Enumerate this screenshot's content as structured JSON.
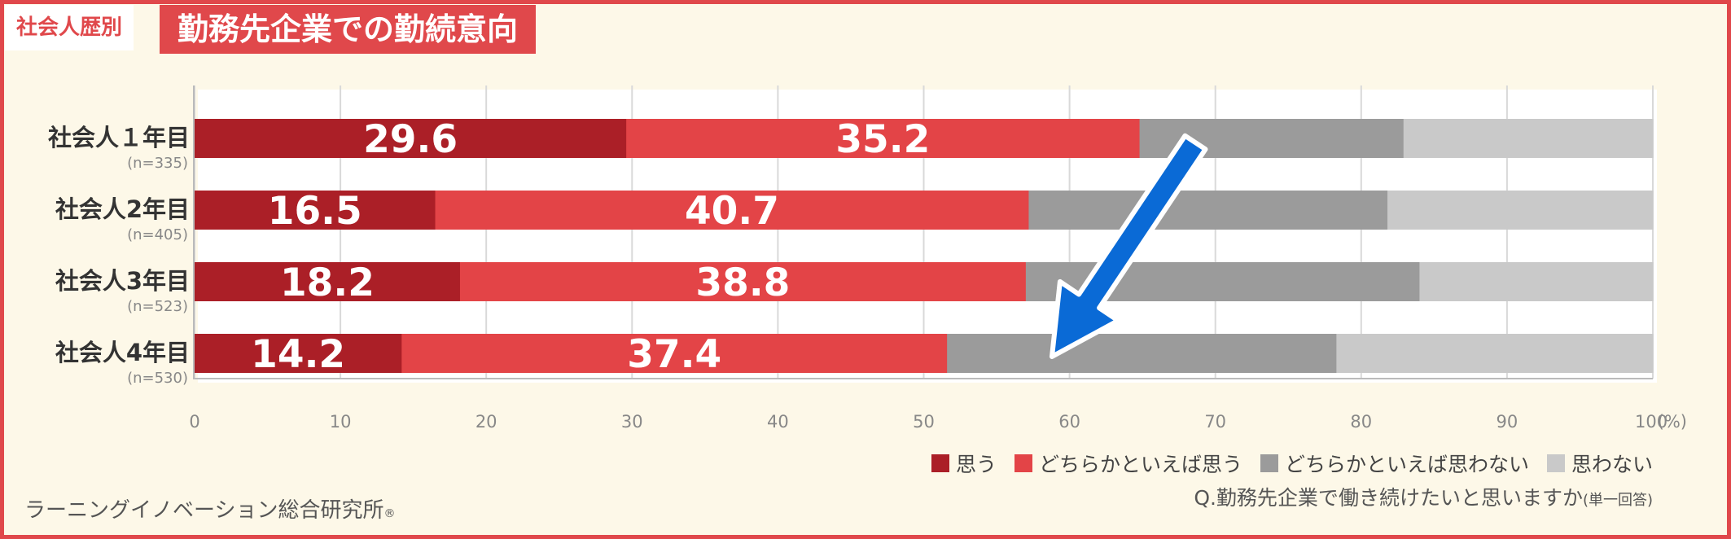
{
  "header": {
    "tag": "社会人歴別",
    "title": "勤務先企業での勤続意向"
  },
  "chart_data": {
    "type": "bar",
    "orientation": "horizontal",
    "stacked": true,
    "categories": [
      "社会人１年目",
      "社会人2年目",
      "社会人3年目",
      "社会人4年目"
    ],
    "sample_sizes": [
      "(n=335)",
      "(n=405)",
      "(n=523)",
      "(n=530)"
    ],
    "series": [
      {
        "name": "思う",
        "values": [
          29.6,
          16.5,
          18.2,
          14.2
        ],
        "color": "#ab1f27",
        "show_labels": true
      },
      {
        "name": "どちらかといえば思う",
        "values": [
          35.2,
          40.7,
          38.8,
          37.4
        ],
        "color": "#e34447",
        "show_labels": true
      },
      {
        "name": "どちらかといえば思わない",
        "values": [
          18.1,
          24.6,
          27.0,
          26.7
        ],
        "color": "#9b9b9b",
        "show_labels": false
      },
      {
        "name": "思わない",
        "values": [
          17.1,
          18.2,
          16.0,
          21.7
        ],
        "color": "#c9c9c9",
        "show_labels": false
      }
    ],
    "xlim": [
      0,
      100
    ],
    "xticks": [
      "0",
      "10",
      "20",
      "30",
      "40",
      "50",
      "60",
      "70",
      "80",
      "90",
      "100"
    ],
    "x_unit": "(%)",
    "grid": true,
    "legend_position": "bottom-right",
    "annotation": {
      "type": "arrow",
      "direction": "down-left",
      "color": "#0a6ad6"
    }
  },
  "footer": {
    "question": "Q.勤務先企業で働き続けたいと思いますか",
    "question_note": "(単一回答)",
    "credit": "ラーニングイノベーション総合研究所",
    "credit_mark": "®"
  }
}
